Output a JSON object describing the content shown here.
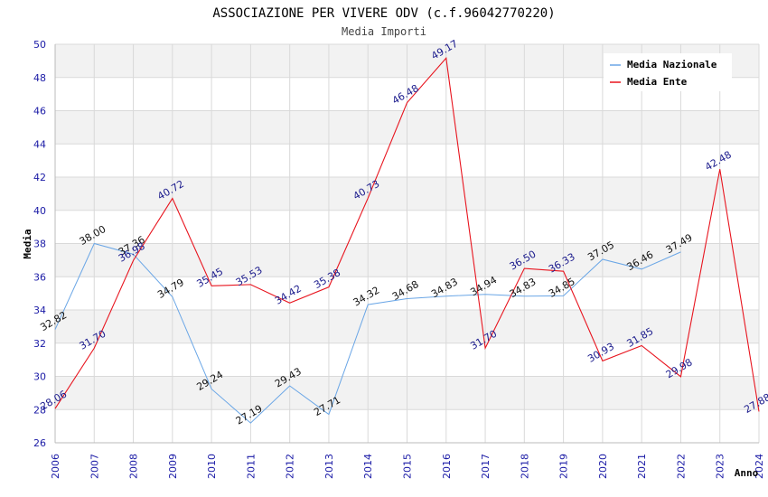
{
  "chart_data": {
    "type": "line",
    "title": "ASSOCIAZIONE PER VIVERE ODV (c.f.96042770220)",
    "subtitle": "Media Importi",
    "xlabel": "Anno",
    "ylabel": "Media",
    "ylim": [
      26,
      50
    ],
    "yticks": [
      26,
      28,
      30,
      32,
      34,
      36,
      38,
      40,
      42,
      44,
      46,
      48,
      50
    ],
    "categories": [
      "2006",
      "2007",
      "2008",
      "2009",
      "2010",
      "2011",
      "2012",
      "2013",
      "2014",
      "2015",
      "2016",
      "2017",
      "2018",
      "2019",
      "2020",
      "2021",
      "2022",
      "2023",
      "2024"
    ],
    "legend_position": "top-right",
    "series": [
      {
        "name": "Media Nazionale",
        "color": "#6aa6e6",
        "label_color": "#111111",
        "values": [
          32.82,
          38.0,
          37.36,
          34.79,
          29.24,
          27.19,
          29.43,
          27.71,
          34.32,
          34.68,
          34.83,
          34.94,
          34.83,
          34.85,
          37.05,
          36.46,
          37.49,
          null,
          null
        ],
        "labels": [
          "32.82",
          "38.00",
          "37.36",
          "34.79",
          "29.24",
          "27.19",
          "29.43",
          "27.71",
          "34.32",
          "34.68",
          "34.83",
          "34.94",
          "34.83",
          "34.85",
          "37.05",
          "36.46",
          "37.49",
          null,
          null
        ]
      },
      {
        "name": "Media Ente",
        "color": "#e8141e",
        "label_color": "#1a1a8c",
        "values": [
          28.06,
          31.7,
          36.98,
          40.72,
          35.45,
          35.53,
          34.42,
          35.38,
          40.73,
          46.48,
          49.17,
          31.7,
          36.5,
          36.33,
          30.93,
          31.85,
          29.98,
          42.48,
          27.88
        ],
        "labels": [
          "28.06",
          "31.70",
          "36.98",
          "40.72",
          "35.45",
          "35.53",
          "34.42",
          "35.38",
          "40.73",
          "46.48",
          "49.17",
          "31.70",
          "36.50",
          "36.33",
          "30.93",
          "31.85",
          "29.98",
          "42.48",
          "27.88"
        ]
      }
    ]
  }
}
